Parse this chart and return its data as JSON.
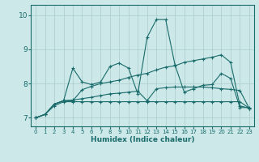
{
  "xlabel": "Humidex (Indice chaleur)",
  "background_color": "#cce8e8",
  "line_color": "#1a6b6b",
  "grid_color": "#aacccc",
  "xlim_min": -0.5,
  "xlim_max": 23.5,
  "ylim_min": 6.75,
  "ylim_max": 10.3,
  "yticks": [
    7,
    8,
    9,
    10
  ],
  "xticks": [
    0,
    1,
    2,
    3,
    4,
    5,
    6,
    7,
    8,
    9,
    10,
    11,
    12,
    13,
    14,
    15,
    16,
    17,
    18,
    19,
    20,
    21,
    22,
    23
  ],
  "series": [
    [
      7.0,
      7.1,
      7.4,
      7.5,
      8.45,
      8.05,
      7.97,
      8.05,
      8.5,
      8.6,
      8.45,
      7.7,
      9.35,
      9.87,
      9.87,
      8.55,
      7.75,
      7.85,
      7.95,
      7.97,
      8.3,
      8.15,
      7.3,
      7.3
    ],
    [
      7.0,
      7.1,
      7.4,
      7.5,
      7.5,
      7.82,
      7.92,
      8.0,
      8.05,
      8.1,
      8.18,
      8.25,
      8.3,
      8.4,
      8.48,
      8.52,
      8.62,
      8.67,
      8.72,
      8.77,
      8.84,
      8.62,
      7.35,
      7.28
    ],
    [
      7.0,
      7.1,
      7.4,
      7.5,
      7.52,
      7.56,
      7.6,
      7.65,
      7.7,
      7.72,
      7.75,
      7.78,
      7.5,
      7.85,
      7.88,
      7.9,
      7.9,
      7.9,
      7.9,
      7.88,
      7.85,
      7.83,
      7.8,
      7.28
    ],
    [
      7.0,
      7.1,
      7.35,
      7.47,
      7.47,
      7.47,
      7.47,
      7.47,
      7.47,
      7.47,
      7.47,
      7.47,
      7.47,
      7.47,
      7.47,
      7.47,
      7.47,
      7.47,
      7.47,
      7.47,
      7.47,
      7.47,
      7.47,
      7.28
    ]
  ]
}
